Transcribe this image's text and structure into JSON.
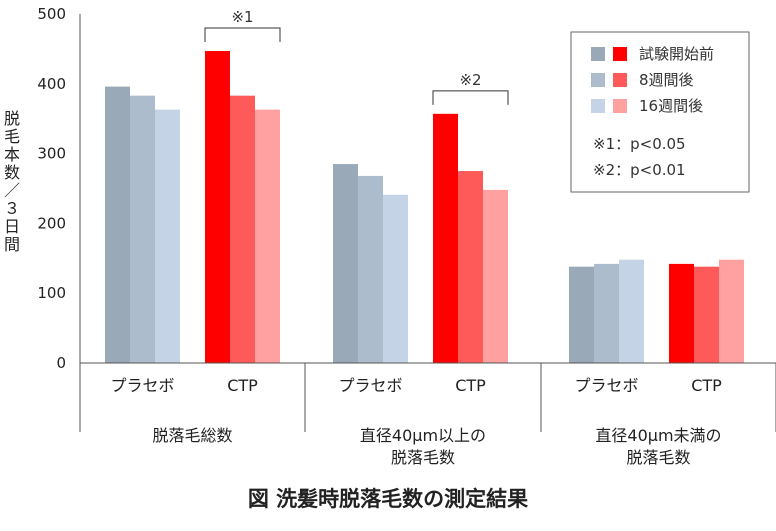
{
  "caption": "図 洗髪時脱落毛数の測定結果",
  "chart_data": {
    "type": "bar",
    "ylabel": "脱毛本数／３日間",
    "ylim": [
      0,
      500
    ],
    "yticks": [
      0,
      100,
      200,
      300,
      400,
      500
    ],
    "grid": false,
    "legend_position": "top-right",
    "groups": [
      {
        "label": "脱落毛総数",
        "lines": [
          "脱落毛総数"
        ]
      },
      {
        "label": "直径40μm以上の脱落毛数",
        "lines": [
          "直径40μm以上の",
          "脱落毛数"
        ]
      },
      {
        "label": "直径40μm未満の脱落毛数",
        "lines": [
          "直径40μm未満の",
          "脱落毛数"
        ]
      }
    ],
    "treatments": [
      "プラセボ",
      "CTP"
    ],
    "timepoints": [
      "試験開始前",
      "8週間後",
      "16週間後"
    ],
    "colors": {
      "プラセボ": [
        "#9aa9b8",
        "#adbccd",
        "#c4d3e6"
      ],
      "CTP": [
        "#ff0000",
        "#ff5a5a",
        "#ffa1a1"
      ]
    },
    "values": {
      "プラセボ": [
        [
          396,
          383,
          363
        ],
        [
          285,
          268,
          241
        ],
        [
          138,
          142,
          148
        ]
      ],
      "CTP": [
        [
          447,
          383,
          363
        ],
        [
          357,
          275,
          248
        ],
        [
          142,
          138,
          148
        ]
      ]
    },
    "significance": [
      {
        "label": "※1",
        "group": 0
      },
      {
        "label": "※2",
        "group": 1
      }
    ],
    "notes": [
      "※1：p<0.05",
      "※2：p<0.01"
    ]
  }
}
